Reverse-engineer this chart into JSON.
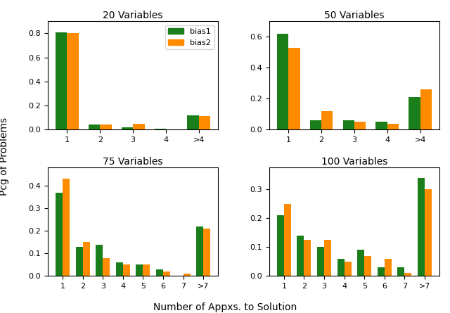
{
  "subplots": [
    {
      "title": "20 Variables",
      "categories": [
        "1",
        "2",
        "3",
        "4",
        ">4"
      ],
      "bias1": [
        0.81,
        0.04,
        0.02,
        0.005,
        0.12
      ],
      "bias2": [
        0.8,
        0.04,
        0.05,
        0.0,
        0.11
      ],
      "ylim": [
        0,
        0.9
      ]
    },
    {
      "title": "50 Variables",
      "categories": [
        "1",
        "2",
        "3",
        "4",
        ">4"
      ],
      "bias1": [
        0.62,
        0.06,
        0.06,
        0.05,
        0.21
      ],
      "bias2": [
        0.53,
        0.12,
        0.05,
        0.04,
        0.26
      ],
      "ylim": [
        0,
        0.7
      ]
    },
    {
      "title": "75 Variables",
      "categories": [
        "1",
        "2",
        "3",
        "4",
        "5",
        "6",
        "7",
        ">7"
      ],
      "bias1": [
        0.37,
        0.13,
        0.14,
        0.06,
        0.05,
        0.03,
        0.0,
        0.22
      ],
      "bias2": [
        0.43,
        0.15,
        0.08,
        0.05,
        0.05,
        0.02,
        0.01,
        0.21
      ],
      "ylim": [
        0,
        0.48
      ]
    },
    {
      "title": "100 Variables",
      "categories": [
        "1",
        "2",
        "3",
        "4",
        "5",
        "6",
        "7",
        ">7"
      ],
      "bias1": [
        0.21,
        0.14,
        0.1,
        0.06,
        0.09,
        0.03,
        0.03,
        0.34
      ],
      "bias2": [
        0.25,
        0.125,
        0.125,
        0.05,
        0.07,
        0.06,
        0.01,
        0.3
      ],
      "ylim": [
        0,
        0.375
      ]
    }
  ],
  "color_bias1": "#1a7f1a",
  "color_bias2": "#ff8c00",
  "xlabel": "Number of Appxs. to Solution",
  "ylabel": "Pcg of Problems",
  "legend_labels": [
    "bias1",
    "bias2"
  ],
  "fig_width": 6.4,
  "fig_height": 4.45,
  "dpi": 100
}
